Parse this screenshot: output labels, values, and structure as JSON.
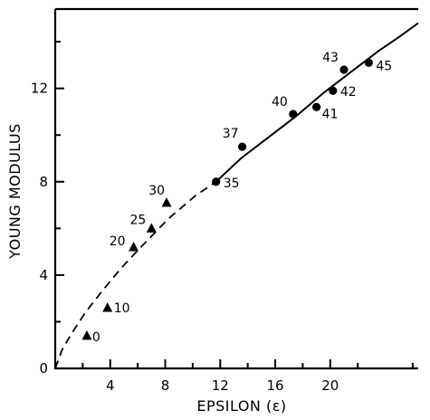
{
  "chart_data": {
    "type": "scatter",
    "xlabel": "EPSILON (ε)",
    "ylabel": "YOUNG MODULUS",
    "xlim": [
      0,
      26.4
    ],
    "ylim": [
      0,
      15.4
    ],
    "xticks": [
      4,
      8,
      12,
      16,
      20
    ],
    "yticks": [
      0,
      4,
      8,
      12
    ],
    "grid": false,
    "series": [
      {
        "marker": "triangle",
        "points": [
          {
            "label": "0",
            "x": 2.3,
            "y": 1.4
          },
          {
            "label": "10",
            "x": 3.8,
            "y": 2.6
          },
          {
            "label": "20",
            "x": 5.7,
            "y": 5.2
          },
          {
            "label": "25",
            "x": 7.0,
            "y": 6.0
          },
          {
            "label": "30",
            "x": 8.1,
            "y": 7.1
          }
        ]
      },
      {
        "marker": "circle",
        "points": [
          {
            "label": "35",
            "x": 11.7,
            "y": 8.0
          },
          {
            "label": "37",
            "x": 13.6,
            "y": 9.5
          },
          {
            "label": "40",
            "x": 17.3,
            "y": 10.9
          },
          {
            "label": "41",
            "x": 19.0,
            "y": 11.2
          },
          {
            "label": "42",
            "x": 20.2,
            "y": 11.9
          },
          {
            "label": "43",
            "x": 21.0,
            "y": 12.8
          },
          {
            "label": "45",
            "x": 22.8,
            "y": 13.1
          }
        ]
      }
    ],
    "fit_curve": {
      "dashed_segment": [
        [
          0,
          0
        ],
        [
          0.5,
          0.8
        ],
        [
          1.2,
          1.5
        ],
        [
          2.2,
          2.4
        ],
        [
          3.4,
          3.3
        ],
        [
          4.8,
          4.3
        ],
        [
          6.4,
          5.3
        ],
        [
          8.2,
          6.4
        ],
        [
          10.2,
          7.4
        ],
        [
          11.7,
          8.0
        ]
      ],
      "solid_segment": [
        [
          11.7,
          8.0
        ],
        [
          13.5,
          9.0
        ],
        [
          15.5,
          9.9
        ],
        [
          17.5,
          10.8
        ],
        [
          19.5,
          11.8
        ],
        [
          21.5,
          12.7
        ],
        [
          23.5,
          13.6
        ],
        [
          25.0,
          14.2
        ],
        [
          26.4,
          14.8
        ]
      ]
    }
  }
}
